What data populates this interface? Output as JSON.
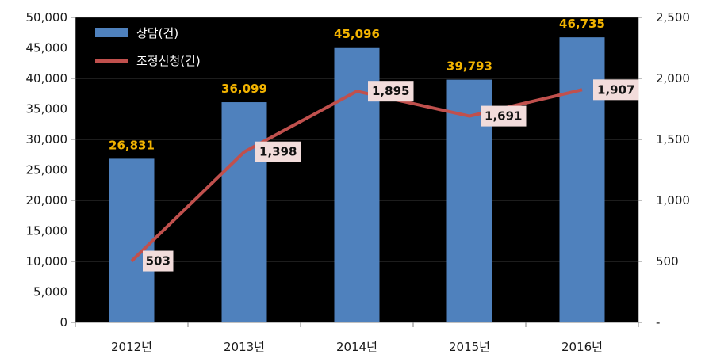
{
  "chart_data": {
    "type": "bar",
    "categories": [
      "2012년",
      "2013년",
      "2014년",
      "2015년",
      "2016년"
    ],
    "series": [
      {
        "name": "상담(건)",
        "type": "bar",
        "axis": "left",
        "values": [
          26831,
          36099,
          45096,
          39793,
          46735
        ],
        "value_labels": [
          "26,831",
          "36,099",
          "45,096",
          "39,793",
          "46,735"
        ],
        "color": "#4f81bd",
        "label_color": "#f2b300"
      },
      {
        "name": "조정신청(건)",
        "type": "line",
        "axis": "right",
        "values": [
          503,
          1398,
          1895,
          1691,
          1907
        ],
        "value_labels": [
          "503",
          "1,398",
          "1,895",
          "1,691",
          "1,907"
        ],
        "color": "#c0504d",
        "label_bg": "#f2dcdb"
      }
    ],
    "y_left": {
      "range": [
        0,
        50000
      ],
      "ticks": [
        0,
        5000,
        10000,
        15000,
        20000,
        25000,
        30000,
        35000,
        40000,
        45000,
        50000
      ],
      "tick_labels": [
        "0",
        "5,000",
        "10,000",
        "15,000",
        "20,000",
        "25,000",
        "30,000",
        "35,000",
        "40,000",
        "45,000",
        "50,000"
      ]
    },
    "y_right": {
      "range": [
        0,
        2500
      ],
      "ticks": [
        0,
        500,
        1000,
        1500,
        2000,
        2500
      ],
      "tick_labels": [
        "-",
        "500",
        "1,000",
        "1,500",
        "2,000",
        "2,500"
      ]
    },
    "grid": true,
    "legend_position": "top-left",
    "colors": {
      "plot_bg": "#000000",
      "grid": "#3a3a3a"
    }
  }
}
